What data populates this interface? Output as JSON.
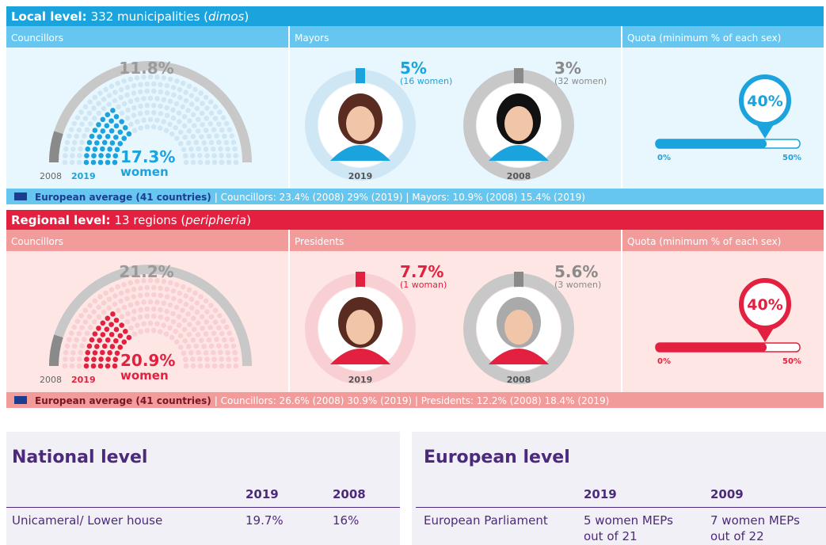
{
  "local": {
    "title": "Local level:",
    "detail_pre": "332 municipalities (",
    "detail_italic": "dimos",
    "detail_post": ")",
    "councillors": {
      "label": "Councillors",
      "total": "11.8%",
      "women": "17.3%",
      "women_label": "women",
      "year_a": "2008",
      "year_b": "2019"
    },
    "leaders": {
      "label": "Mayors",
      "items": [
        {
          "pct": "5%",
          "note": "(16 women)",
          "year": "2019"
        },
        {
          "pct": "3%",
          "note": "(32 women)",
          "year": "2008"
        }
      ]
    },
    "quota": {
      "label": "Quota (minimum % of each sex)",
      "value": "40%",
      "min": "0%",
      "max": "50%"
    },
    "footer": {
      "bold": "European average (41 countries)",
      "text": "| Councillors: 23.4% (2008)   29% (2019) | Mayors: 10.9% (2008)   15.4% (2019)"
    }
  },
  "regional": {
    "title": "Regional level:",
    "detail_pre": "13 regions (",
    "detail_italic": "peripheria",
    "detail_post": ")",
    "councillors": {
      "label": "Councillors",
      "total": "21.2%",
      "women": "20.9%",
      "women_label": "women",
      "year_a": "2008",
      "year_b": "2019"
    },
    "leaders": {
      "label": "Presidents",
      "items": [
        {
          "pct": "7.7%",
          "note": "(1 woman)",
          "year": "2019"
        },
        {
          "pct": "5.6%",
          "note": "(3 women)",
          "year": "2008"
        }
      ]
    },
    "quota": {
      "label": "Quota (minimum % of each sex)",
      "value": "40%",
      "min": "0%",
      "max": "50%"
    },
    "footer": {
      "bold": "European average (41 countries)",
      "text": "| Councillors: 26.6% (2008)   30.9% (2019) | Presidents: 12.2% (2008)   18.4% (2019)"
    }
  },
  "national": {
    "title": "National level",
    "columns": [
      "2019",
      "2008"
    ],
    "rows": [
      {
        "label": "Unicameral/ Lower house",
        "values": [
          "19.7%",
          "16%"
        ]
      }
    ]
  },
  "european": {
    "title": "European level",
    "columns": [
      "2019",
      "2009"
    ],
    "rows": [
      {
        "label": "European Parliament",
        "values": [
          "5 women MEPs out of 21",
          "7 women MEPs out of 22"
        ]
      }
    ]
  }
}
